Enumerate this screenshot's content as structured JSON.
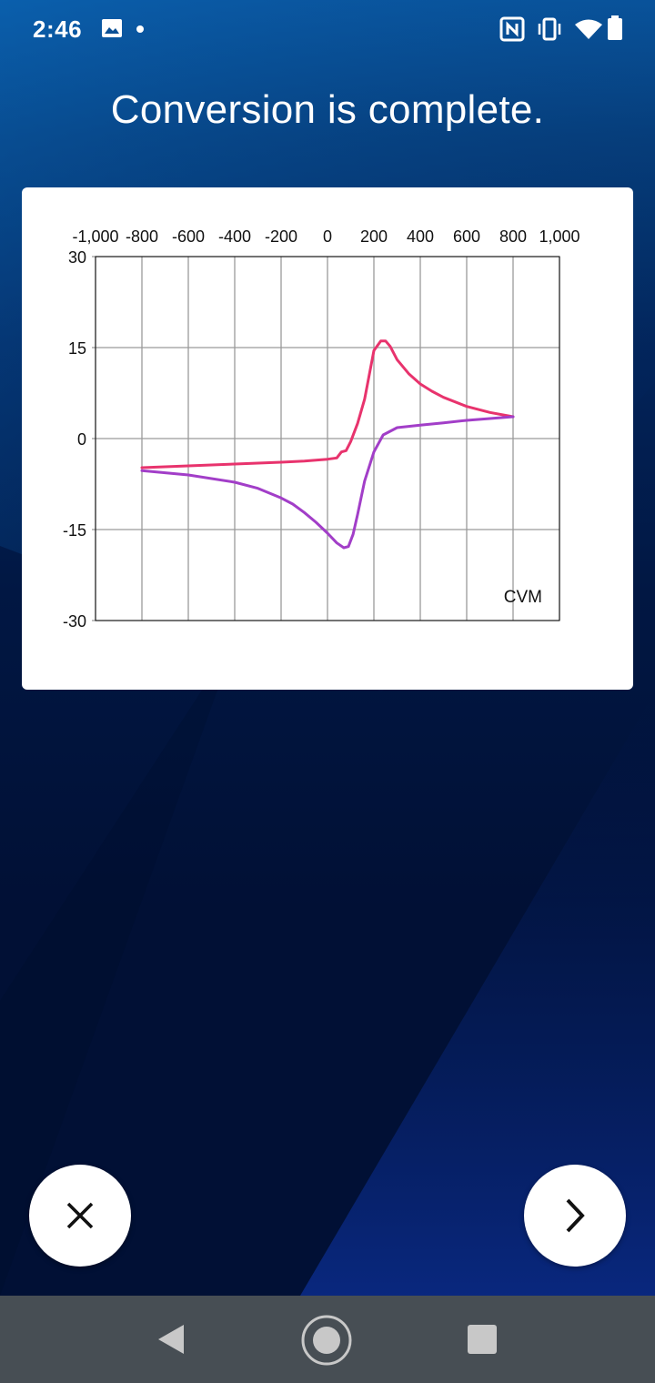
{
  "status_bar": {
    "time": "2:46",
    "left_icons": [
      "image-icon",
      "dot-icon"
    ],
    "right_icons": [
      "nfc-icon",
      "vibrate-icon",
      "wifi-icon",
      "battery-icon"
    ]
  },
  "header": {
    "title": "Conversion is complete."
  },
  "chart_data": {
    "type": "line",
    "title": "",
    "xlabel": "",
    "ylabel": "",
    "annotation": "CVM",
    "xlim": [
      -1000,
      1000
    ],
    "ylim": [
      -30,
      30
    ],
    "x_ticks": [
      -1000,
      -800,
      -600,
      -400,
      -200,
      0,
      200,
      400,
      600,
      800,
      1000
    ],
    "x_tick_labels": [
      "-1,000",
      "-800",
      "-600",
      "-400",
      "-200",
      "0",
      "200",
      "400",
      "600",
      "800",
      "1,000"
    ],
    "y_ticks": [
      30,
      15,
      0,
      -15,
      -30
    ],
    "y_tick_labels": [
      "30",
      "15",
      "0",
      "-15",
      "-30"
    ],
    "x_axis_position": "top",
    "grid": true,
    "series": [
      {
        "color": "#e8336d",
        "x": [
          -800,
          -600,
          -400,
          -200,
          -100,
          0,
          40,
          60,
          80,
          100,
          130,
          160,
          200,
          230,
          250,
          270,
          300,
          350,
          400,
          450,
          500,
          600,
          700,
          800
        ],
        "y": [
          -4.8,
          -4.5,
          -4.2,
          -3.9,
          -3.7,
          -3.4,
          -3.2,
          -2.2,
          -2.0,
          -0.5,
          2.5,
          6.5,
          14.5,
          16.1,
          16.1,
          15.2,
          13.0,
          10.7,
          9.0,
          7.8,
          6.8,
          5.3,
          4.3,
          3.6
        ]
      },
      {
        "color": "#a23ec8",
        "x": [
          -800,
          -600,
          -400,
          -300,
          -200,
          -150,
          -100,
          -50,
          0,
          40,
          70,
          90,
          110,
          130,
          160,
          200,
          240,
          300,
          400,
          500,
          600,
          700,
          800
        ],
        "y": [
          -5.3,
          -6.0,
          -7.2,
          -8.2,
          -9.8,
          -10.8,
          -12.2,
          -13.8,
          -15.6,
          -17.2,
          -18.0,
          -17.8,
          -15.8,
          -12.5,
          -7.0,
          -2.2,
          0.6,
          1.8,
          2.2,
          2.6,
          3.0,
          3.3,
          3.6
        ]
      }
    ]
  },
  "actions": {
    "cancel_icon": "close-icon",
    "next_icon": "chevron-right-icon"
  },
  "nav_bar": {
    "icons": [
      "back-icon",
      "home-icon",
      "recents-icon"
    ]
  }
}
